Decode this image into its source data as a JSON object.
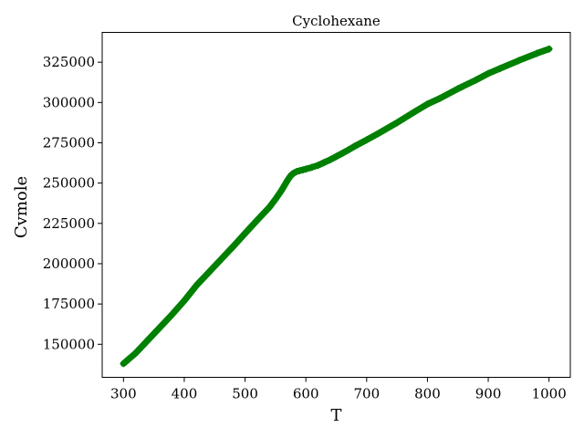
{
  "chart_data": {
    "type": "line",
    "title": "Cyclohexane",
    "xlabel": "T",
    "ylabel": "Cvmole",
    "xlim": [
      265,
      1035
    ],
    "ylim": [
      129500,
      343500
    ],
    "xticks": [
      300,
      400,
      500,
      600,
      700,
      800,
      900,
      1000
    ],
    "yticks": [
      150000,
      175000,
      200000,
      225000,
      250000,
      275000,
      300000,
      325000
    ],
    "xtick_labels": [
      "300",
      "400",
      "500",
      "600",
      "700",
      "800",
      "900",
      "1000"
    ],
    "ytick_labels": [
      "150000",
      "175000",
      "200000",
      "225000",
      "250000",
      "275000",
      "300000",
      "325000"
    ],
    "grid": false,
    "color": "#008000",
    "marker": "diamond",
    "series": [
      {
        "x": [
          300,
          320,
          350,
          380,
          400,
          420,
          450,
          480,
          500,
          520,
          540,
          550,
          560,
          570,
          575,
          580,
          585,
          590,
          595,
          600,
          610,
          620,
          630,
          640,
          650,
          660,
          670,
          680,
          700,
          720,
          750,
          780,
          800,
          820,
          850,
          880,
          900,
          920,
          950,
          980,
          1000
        ],
        "y": [
          138000,
          144500,
          156500,
          168500,
          177000,
          186500,
          198500,
          210500,
          218800,
          227000,
          235000,
          240000,
          245500,
          251800,
          254600,
          256200,
          257200,
          257700,
          258200,
          258700,
          259800,
          261000,
          262800,
          264500,
          266500,
          268500,
          270600,
          272800,
          276800,
          281000,
          287500,
          294500,
          299000,
          302500,
          308500,
          314000,
          318000,
          321200,
          326000,
          330500,
          333200
        ]
      }
    ]
  }
}
